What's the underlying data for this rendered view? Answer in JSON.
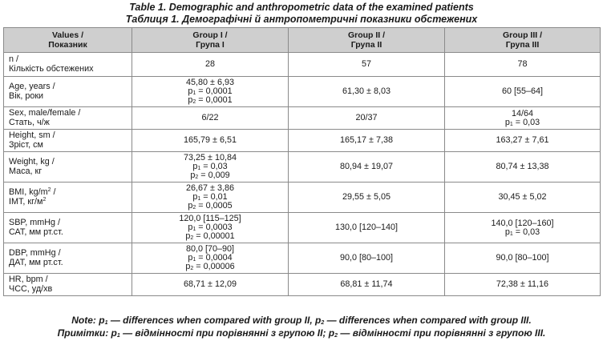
{
  "caption": {
    "en": "Table 1. Demographic and anthropometric data of the examined patients",
    "uk": "Таблиця 1. Демографічні й антропометричні показники обстежених"
  },
  "header": {
    "col0": [
      "Values /",
      "Показник"
    ],
    "col1": [
      "Group I /",
      "Група I"
    ],
    "col2": [
      "Group II /",
      "Група II"
    ],
    "col3": [
      "Group III /",
      "Група III"
    ]
  },
  "rows": [
    {
      "label": [
        "n /",
        "Кількість обстежених"
      ],
      "g1": [
        "28"
      ],
      "g2": [
        "57"
      ],
      "g3": [
        "78"
      ]
    },
    {
      "label": [
        "Age, years /",
        "Вік, роки"
      ],
      "g1": [
        "45,80 ± 6,93",
        "p|1| = 0,0001",
        "p|2| = 0,0001"
      ],
      "g2": [
        "61,30 ± 8,03"
      ],
      "g3": [
        "60 [55–64]"
      ]
    },
    {
      "label": [
        "Sex, male/female /",
        "Стать, ч/ж"
      ],
      "g1": [
        "6/22"
      ],
      "g2": [
        "20/37"
      ],
      "g3": [
        "14/64",
        "p|1| = 0,03"
      ]
    },
    {
      "label": [
        "Height, sm /",
        "Зріст, см"
      ],
      "g1": [
        "165,79 ± 6,51"
      ],
      "g2": [
        "165,17 ± 7,38"
      ],
      "g3": [
        "163,27 ± 7,61"
      ]
    },
    {
      "label": [
        "Weight, kg /",
        "Маса, кг"
      ],
      "g1": [
        "73,25 ± 10,84",
        "p|1| = 0,03",
        "p|2| = 0,009"
      ],
      "g2": [
        "80,94 ± 19,07"
      ],
      "g3": [
        "80,74 ± 13,38"
      ]
    },
    {
      "label": [
        "BMI, kg/m^2^ /",
        "ІМТ, кг/м^2^"
      ],
      "g1": [
        "26,67 ± 3,86",
        "p|1| = 0,01",
        "p|2| = 0,0005"
      ],
      "g2": [
        "29,55 ± 5,05"
      ],
      "g3": [
        "30,45 ± 5,02"
      ]
    },
    {
      "label": [
        "SBP, mmHg /",
        "САТ, мм рт.ст."
      ],
      "g1": [
        "120,0 [115–125]",
        "p|1| = 0,0003",
        "p|2| = 0,00001"
      ],
      "g2": [
        "130,0 [120–140]"
      ],
      "g3": [
        "140,0 [120–160]",
        "p|1| = 0,03"
      ]
    },
    {
      "label": [
        "DBP, mmHg /",
        "ДАТ, мм рт.ст."
      ],
      "g1": [
        "80,0 [70–90]",
        "p|1| = 0,0004",
        "p|2| = 0,00006"
      ],
      "g2": [
        "90,0 [80–100]"
      ],
      "g3": [
        "90,0 [80–100]"
      ]
    },
    {
      "label": [
        "HR, bpm /",
        "ЧСС, уд/хв"
      ],
      "g1": [
        "68,71 ± 12,09"
      ],
      "g2": [
        "68,81 ± 11,74"
      ],
      "g3": [
        "72,38 ± 11,16"
      ]
    }
  ],
  "note": {
    "en": "Note: p|1| — differences when compared with group II, p|2| — differences when compared with group III.",
    "uk": "Примітки: p|1| — відмінності при порівнянні з групою II; p|2| — відмінності при порівнянні з групою III."
  }
}
